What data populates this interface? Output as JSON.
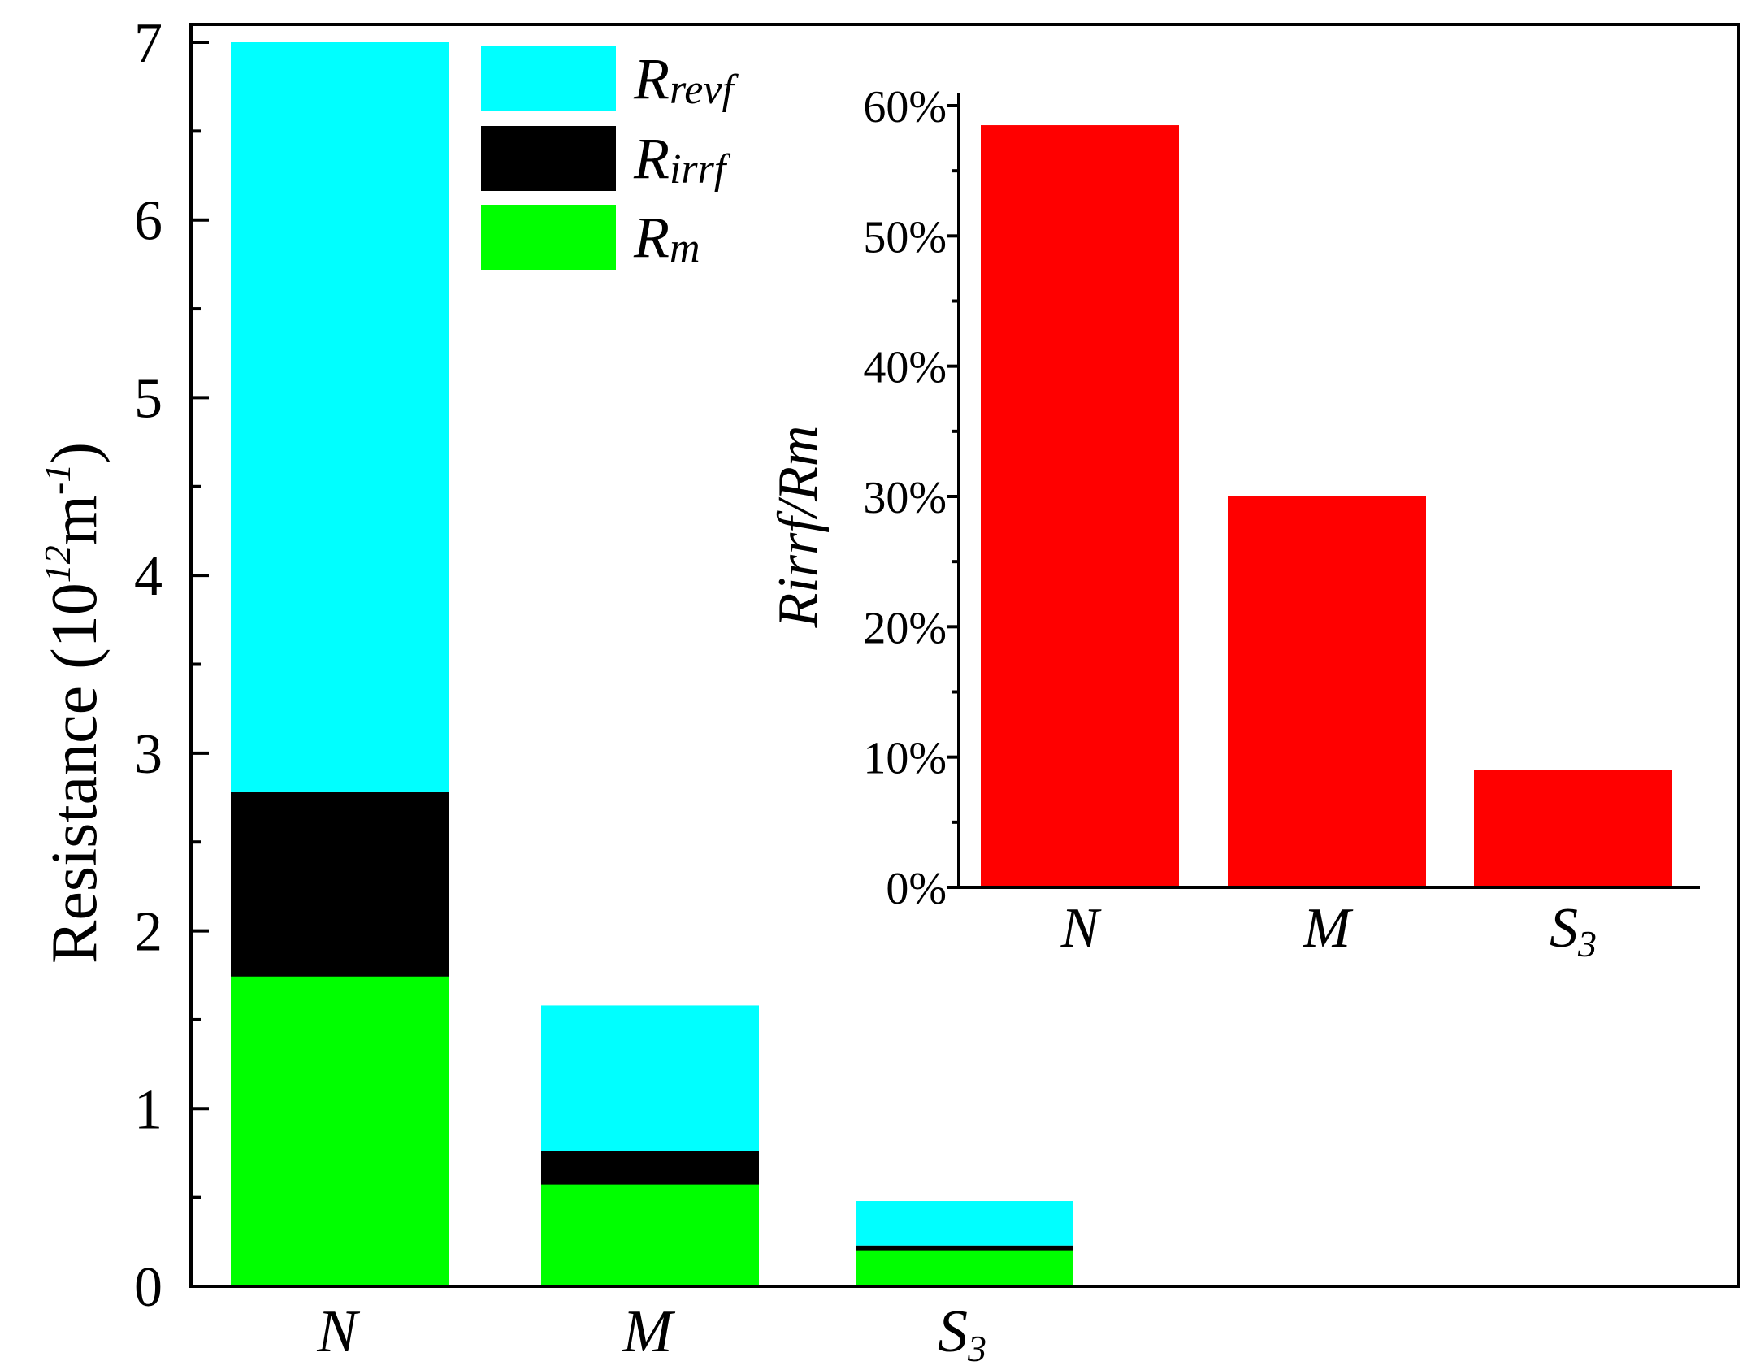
{
  "chart_data": [
    {
      "type": "bar",
      "stacked": true,
      "categories": [
        "N",
        "M",
        "S3"
      ],
      "series": [
        {
          "name": "Rm",
          "values": [
            1.75,
            0.58,
            0.21
          ],
          "color": "#00ff00"
        },
        {
          "name": "Rirrf",
          "values": [
            1.03,
            0.18,
            0.02
          ],
          "color": "#000000"
        },
        {
          "name": "Rrevf",
          "values": [
            4.22,
            0.82,
            0.25
          ],
          "color": "#00ffff"
        }
      ],
      "ylabel": "Resistance (10",
      "ylabel_sup": "12",
      "ylabel_mid": "m",
      "ylabel_sup2": "-1",
      "ylabel_end": ")",
      "ylim": [
        0,
        7
      ],
      "yticks": [
        "0",
        "1",
        "2",
        "3",
        "4",
        "5",
        "6",
        "7"
      ],
      "xlabel": "",
      "legend": {
        "placement": "top-center",
        "entries": [
          {
            "main": "R",
            "sub": "revf",
            "color": "#00ffff"
          },
          {
            "main": "R",
            "sub": "irrf",
            "color": "#000000"
          },
          {
            "main": "R",
            "sub": "m",
            "color": "#00ff00"
          }
        ]
      },
      "grid": false
    },
    {
      "type": "bar",
      "inset": true,
      "placement": "top-right",
      "categories": [
        "N",
        "M",
        "S3"
      ],
      "values": [
        58.5,
        30,
        9
      ],
      "color": "#ff0000",
      "ylabel": "Rirrf/Rm",
      "ylim": [
        0,
        60
      ],
      "yticks": [
        "0%",
        "10%",
        "20%",
        "30%",
        "40%",
        "50%",
        "60%"
      ],
      "grid": false
    }
  ]
}
